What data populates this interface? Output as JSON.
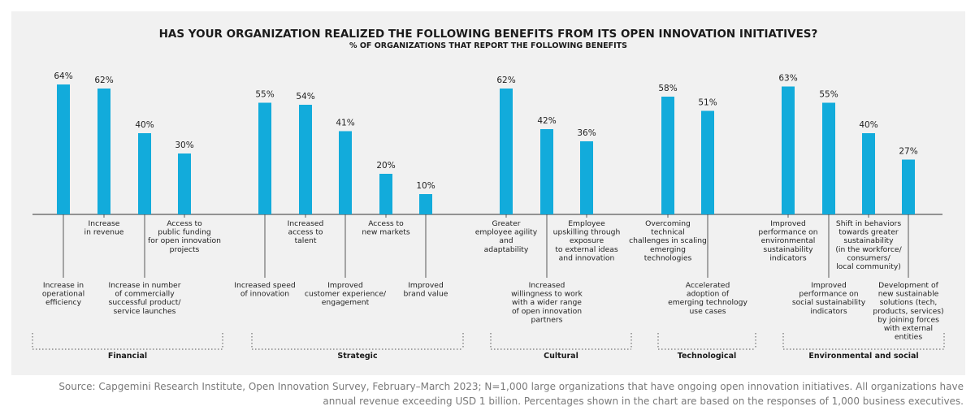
{
  "chart_data": {
    "type": "bar",
    "title": "HAS YOUR ORGANIZATION REALIZED THE FOLLOWING BENEFITS FROM ITS OPEN INNOVATION INITIATIVES?",
    "subtitle": "% OF ORGANIZATIONS THAT REPORT THE FOLLOWING BENEFITS",
    "unit": "%",
    "bar_color": "#12abdb",
    "groups": [
      {
        "name": "Financial",
        "items": [
          {
            "label": [
              "Increase in",
              "operational",
              "efficiency"
            ],
            "value": 64,
            "value_label": "64%",
            "placement": "low"
          },
          {
            "label": [
              "Increase",
              "in revenue"
            ],
            "value": 62,
            "value_label": "62%",
            "placement": "high"
          },
          {
            "label": [
              "Increase in number",
              "of commercially",
              "successful product/",
              "service launches"
            ],
            "value": 40,
            "value_label": "40%",
            "placement": "low"
          },
          {
            "label": [
              "Access to",
              "public funding",
              "for open innovation",
              "projects"
            ],
            "value": 30,
            "value_label": "30%",
            "placement": "high"
          }
        ]
      },
      {
        "name": "Strategic",
        "items": [
          {
            "label": [
              "Increased speed",
              "of innovation"
            ],
            "value": 55,
            "value_label": "55%",
            "placement": "low"
          },
          {
            "label": [
              "Increased",
              "access to",
              "talent"
            ],
            "value": 54,
            "value_label": "54%",
            "placement": "high"
          },
          {
            "label": [
              "Improved",
              "customer experience/",
              "engagement"
            ],
            "value": 41,
            "value_label": "41%",
            "placement": "low"
          },
          {
            "label": [
              "Access to",
              "new markets"
            ],
            "value": 20,
            "value_label": "20%",
            "placement": "high"
          },
          {
            "label": [
              "Improved",
              "brand value"
            ],
            "value": 10,
            "value_label": "10%",
            "placement": "low"
          }
        ]
      },
      {
        "name": "Cultural",
        "items": [
          {
            "label": [
              "Greater",
              "employee agility",
              "and",
              "adaptability"
            ],
            "value": 62,
            "value_label": "62%",
            "placement": "high"
          },
          {
            "label": [
              "Increased",
              "willingness to work",
              "with a wider range",
              "of open innovation",
              "partners"
            ],
            "value": 42,
            "value_label": "42%",
            "placement": "low"
          },
          {
            "label": [
              "Employee",
              "upskilling through",
              "exposure",
              "to external ideas",
              "and innovation"
            ],
            "value": 36,
            "value_label": "36%",
            "placement": "high"
          }
        ]
      },
      {
        "name": "Technological",
        "items": [
          {
            "label": [
              "Overcoming",
              "technical",
              "challenges in scaling",
              "emerging",
              "technologies"
            ],
            "value": 58,
            "value_label": "58%",
            "placement": "high"
          },
          {
            "label": [
              "Accelerated",
              "adoption of",
              "emerging technology",
              "use cases"
            ],
            "value": 51,
            "value_label": "51%",
            "placement": "low"
          }
        ]
      },
      {
        "name": "Environmental and social",
        "items": [
          {
            "label": [
              "Improved",
              "performance on",
              "environmental",
              "sustainability",
              "indicators"
            ],
            "value": 63,
            "value_label": "63%",
            "placement": "high"
          },
          {
            "label": [
              "Improved",
              "performance on",
              "social sustainability",
              "indicators"
            ],
            "value": 55,
            "value_label": "55%",
            "placement": "low"
          },
          {
            "label": [
              "Shift in behaviors",
              "towards greater",
              "sustainability",
              "(in the workforce/",
              "consumers/",
              "local community)"
            ],
            "value": 40,
            "value_label": "40%",
            "placement": "high"
          },
          {
            "label": [
              "Development of",
              "new sustainable",
              "solutions (tech,",
              "products, services)",
              "by joining forces",
              "with external",
              "entities"
            ],
            "value": 27,
            "value_label": "27%",
            "placement": "low"
          }
        ]
      }
    ]
  },
  "source": [
    "Source: Capgemini Research Institute, Open Innovation Survey, February–March 2023; N=1,000 large organizations that have ongoing open innovation initiatives. All organizations have",
    "annual revenue exceeding USD 1 billion. Percentages shown in the chart are based on the responses of 1,000 business executives."
  ]
}
